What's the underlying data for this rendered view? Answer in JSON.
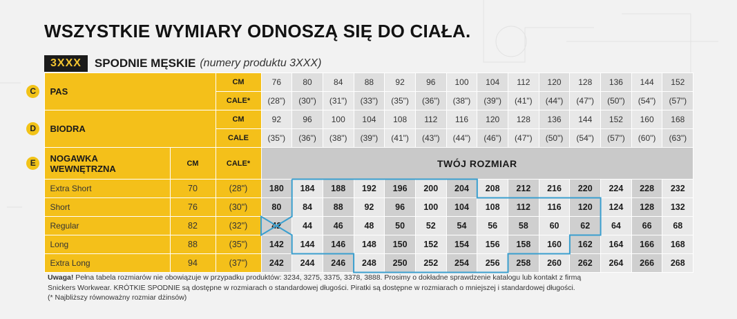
{
  "heading": "WSZYSTKIE WYMIARY ODNOSZĄ SIĘ DO CIAŁA.",
  "product": {
    "code": "3XXX",
    "title": "SPODNIE MĘSKIE",
    "note": "(numery produktu 3XXX)"
  },
  "colors": {
    "yellow": "#f4c01a",
    "dark": "#1b1b1b",
    "outline": "#3a9fcf"
  },
  "pas": {
    "letter": "C",
    "label": "PAS",
    "unit_cm": "CM",
    "unit_cale": "CALE*",
    "cm": [
      "76",
      "80",
      "84",
      "88",
      "92",
      "96",
      "100",
      "104",
      "112",
      "120",
      "128",
      "136",
      "144",
      "152"
    ],
    "cale": [
      "(28\")",
      "(30\")",
      "(31\")",
      "(33\")",
      "(35\")",
      "(36\")",
      "(38\")",
      "(39\")",
      "(41\")",
      "(44\")",
      "(47\")",
      "(50\")",
      "(54\")",
      "(57\")"
    ]
  },
  "biodra": {
    "letter": "D",
    "label": "BIODRA",
    "unit_cm": "CM",
    "unit_cale": "CALE",
    "cm": [
      "92",
      "96",
      "100",
      "104",
      "108",
      "112",
      "116",
      "120",
      "128",
      "136",
      "144",
      "152",
      "160",
      "168"
    ],
    "cale": [
      "(35\")",
      "(36\")",
      "(38\")",
      "(39\")",
      "(41\")",
      "(43\")",
      "(44\")",
      "(46\")",
      "(47\")",
      "(50\")",
      "(54\")",
      "(57\")",
      "(60\")",
      "(63\")"
    ]
  },
  "nogawka": {
    "letter": "E",
    "label_line1": "NOGAWKA",
    "label_line2": "WEWNĘTRZNA",
    "col_cm": "CM",
    "col_cale": "CALE*",
    "your_size": "TWÓJ ROZMIAR",
    "rows": [
      {
        "name": "Extra Short",
        "cm": "70",
        "cale": "(28\")",
        "sizes": [
          "180",
          "184",
          "188",
          "192",
          "196",
          "200",
          "204",
          "208",
          "212",
          "216",
          "220",
          "224",
          "228",
          "232"
        ]
      },
      {
        "name": "Short",
        "cm": "76",
        "cale": "(30\")",
        "sizes": [
          "80",
          "84",
          "88",
          "92",
          "96",
          "100",
          "104",
          "108",
          "112",
          "116",
          "120",
          "124",
          "128",
          "132"
        ]
      },
      {
        "name": "Regular",
        "cm": "82",
        "cale": "(32\")",
        "sizes": [
          "42",
          "44",
          "46",
          "48",
          "50",
          "52",
          "54",
          "56",
          "58",
          "60",
          "62",
          "64",
          "66",
          "68"
        ]
      },
      {
        "name": "Long",
        "cm": "88",
        "cale": "(35\")",
        "sizes": [
          "142",
          "144",
          "146",
          "148",
          "150",
          "152",
          "154",
          "156",
          "158",
          "160",
          "162",
          "164",
          "166",
          "168"
        ]
      },
      {
        "name": "Extra Long",
        "cm": "94",
        "cale": "(37\")",
        "sizes": [
          "242",
          "244",
          "246",
          "248",
          "250",
          "252",
          "254",
          "256",
          "258",
          "260",
          "262",
          "264",
          "266",
          "268"
        ]
      }
    ]
  },
  "footnote": {
    "bold": "Uwaga!",
    "line1": " Pełna tabela rozmiarów nie obowiązuje w przypadku produktów: 3234, 3275, 3375, 3378, 3888. Prosimy o dokładne sprawdzenie katalogu lub kontakt z firmą",
    "line2": "Snickers Workwear. KRÓTKIE SPODNIE są dostępne w rozmiarach o standardowej długości. Piratki są dostępne w rozmiarach o mniejszej i standardowej długości.",
    "line3": "(* Najbliższy równoważny rozmiar dżinsów)"
  }
}
